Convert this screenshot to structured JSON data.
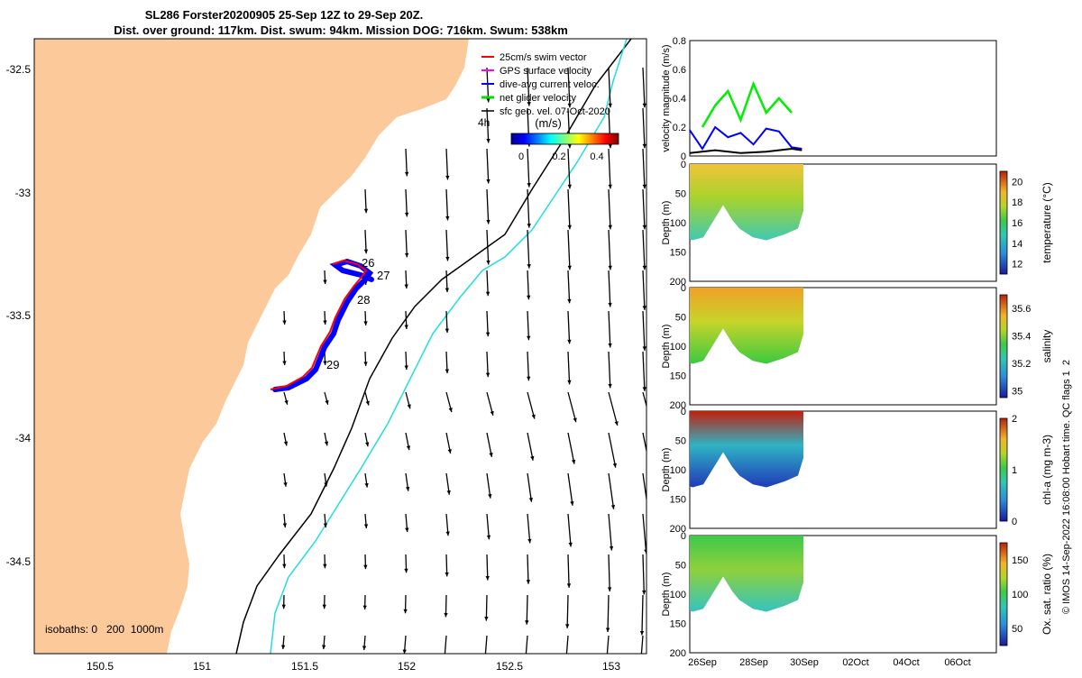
{
  "title": {
    "line1": "SL286 Forster20200905 25-Sep 12Z to 29-Sep 20Z.",
    "line2": "Dist. over ground: 117km. Dist. swum: 94km. Mission DOG: 716km. Swum: 538km"
  },
  "map": {
    "lat_ticks": [
      "-32.5",
      "-33",
      "-33.5",
      "-34",
      "-34.5"
    ],
    "lon_ticks": [
      "150.5",
      "151",
      "151.5",
      "152",
      "152.5",
      "153"
    ],
    "legend": [
      {
        "label": "25cm/s swim vector",
        "color": "#ff0000"
      },
      {
        "label": "GPS surface velocity",
        "color": "#ff00ff"
      },
      {
        "label": "dive-avg current veloc.",
        "color": "#0000ff"
      },
      {
        "label": "net glider velocity",
        "color": "#00dd00"
      },
      {
        "label": "sfc geo. vel. 07-Oct-2020",
        "color": "#000000"
      }
    ],
    "time_label": "4h",
    "colorbar_title": "(m/s)",
    "colorbar_ticks": [
      "0",
      "0.2",
      "0.4"
    ],
    "day_labels": [
      "26",
      "27",
      "28",
      "29"
    ],
    "isobaths_label": "isobaths: 0   200  1000m",
    "land_color": "#fbc99a",
    "isobath_200_color": "#000000",
    "isobath_1000_color": "#22dddd"
  },
  "chart_data": [
    {
      "type": "line",
      "ylabel": "velocity magnitude (m/s)",
      "ylim": [
        0,
        0.8
      ],
      "yticks": [
        "0",
        "0.2",
        "0.4",
        "0.6",
        "0.8"
      ],
      "series": [
        {
          "color": "#00ee00",
          "x": [
            26.0,
            26.5,
            27.0,
            27.5,
            28.0,
            28.5,
            29.0,
            29.5
          ],
          "values": [
            0.2,
            0.35,
            0.45,
            0.25,
            0.5,
            0.3,
            0.4,
            0.3
          ]
        },
        {
          "color": "#0000ff",
          "x": [
            25.5,
            26.0,
            26.5,
            27.0,
            27.5,
            28.0,
            28.5,
            29.0,
            29.5,
            29.9
          ],
          "values": [
            0.18,
            0.05,
            0.2,
            0.13,
            0.16,
            0.08,
            0.19,
            0.17,
            0.06,
            0.05
          ]
        },
        {
          "color": "#000000",
          "x": [
            25.5,
            26.5,
            27.5,
            28.5,
            29.5,
            29.9
          ],
          "values": [
            0.02,
            0.04,
            0.02,
            0.03,
            0.05,
            0.04
          ]
        }
      ]
    },
    {
      "type": "heatmap",
      "ylabel": "Depth (m)",
      "ylim": [
        0,
        200
      ],
      "yticks": [
        "0",
        "50",
        "100",
        "150",
        "200"
      ],
      "colorbar_label": "temperature (°C)",
      "colorbar_ticks": [
        "12",
        "14",
        "16",
        "18",
        "20"
      ],
      "colorbar_range": [
        11,
        21
      ]
    },
    {
      "type": "heatmap",
      "ylabel": "Depth (m)",
      "ylim": [
        0,
        200
      ],
      "yticks": [
        "0",
        "50",
        "100",
        "150",
        "200"
      ],
      "colorbar_label": "salinity",
      "colorbar_ticks": [
        "35",
        "35.2",
        "35.4",
        "35.6"
      ],
      "colorbar_range": [
        34.95,
        35.7
      ]
    },
    {
      "type": "heatmap",
      "ylabel": "Depth (m)",
      "ylim": [
        0,
        200
      ],
      "yticks": [
        "0",
        "50",
        "100",
        "150",
        "200"
      ],
      "colorbar_label": "chl-a (mg m-3)",
      "colorbar_ticks": [
        "0",
        "1",
        "2"
      ],
      "colorbar_range": [
        0,
        2
      ]
    },
    {
      "type": "heatmap",
      "ylabel": "Depth (m)",
      "ylim": [
        0,
        200
      ],
      "yticks": [
        "0",
        "50",
        "100",
        "150",
        "200"
      ],
      "colorbar_label": "Ox. sat. ratio (%)",
      "colorbar_ticks": [
        "50",
        "100",
        "150"
      ],
      "colorbar_range": [
        25,
        175
      ],
      "xticks": [
        "26Sep",
        "28Sep",
        "30Sep",
        "02Oct",
        "04Oct",
        "06Oct"
      ]
    }
  ],
  "side_note": "© IMOS 14-Sep-2022 16:08:00 Hobart time. QC flags 1  2"
}
